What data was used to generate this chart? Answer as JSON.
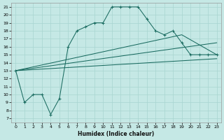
{
  "xlabel": "Humidex (Indice chaleur)",
  "bg_color": "#c5e8e5",
  "grid_color": "#a8d5d0",
  "line_color": "#1a6b60",
  "xlim": [
    -0.5,
    23.5
  ],
  "ylim": [
    6.5,
    21.5
  ],
  "xticks": [
    0,
    1,
    2,
    3,
    4,
    5,
    6,
    7,
    8,
    9,
    10,
    11,
    12,
    13,
    14,
    15,
    16,
    17,
    18,
    19,
    20,
    21,
    22,
    23
  ],
  "yticks": [
    7,
    8,
    9,
    10,
    11,
    12,
    13,
    14,
    15,
    16,
    17,
    18,
    19,
    20,
    21
  ],
  "main_line_x": [
    0,
    1,
    2,
    3,
    4,
    5,
    6,
    7,
    8,
    9,
    10,
    11,
    12,
    13,
    14,
    15,
    16,
    17,
    18,
    19,
    20,
    21,
    22,
    23
  ],
  "main_line_y": [
    13,
    9,
    10,
    10,
    7.5,
    9.5,
    16,
    18,
    18.5,
    19,
    19,
    21,
    21,
    21,
    21,
    19.5,
    18,
    17.5,
    18,
    16.5,
    15,
    15,
    15,
    15
  ],
  "extra_lines": [
    {
      "x": [
        0,
        23
      ],
      "y": [
        13,
        14.5
      ]
    },
    {
      "x": [
        0,
        23
      ],
      "y": [
        13,
        16.5
      ]
    },
    {
      "x": [
        0,
        19,
        23
      ],
      "y": [
        13,
        17.5,
        15
      ]
    }
  ]
}
